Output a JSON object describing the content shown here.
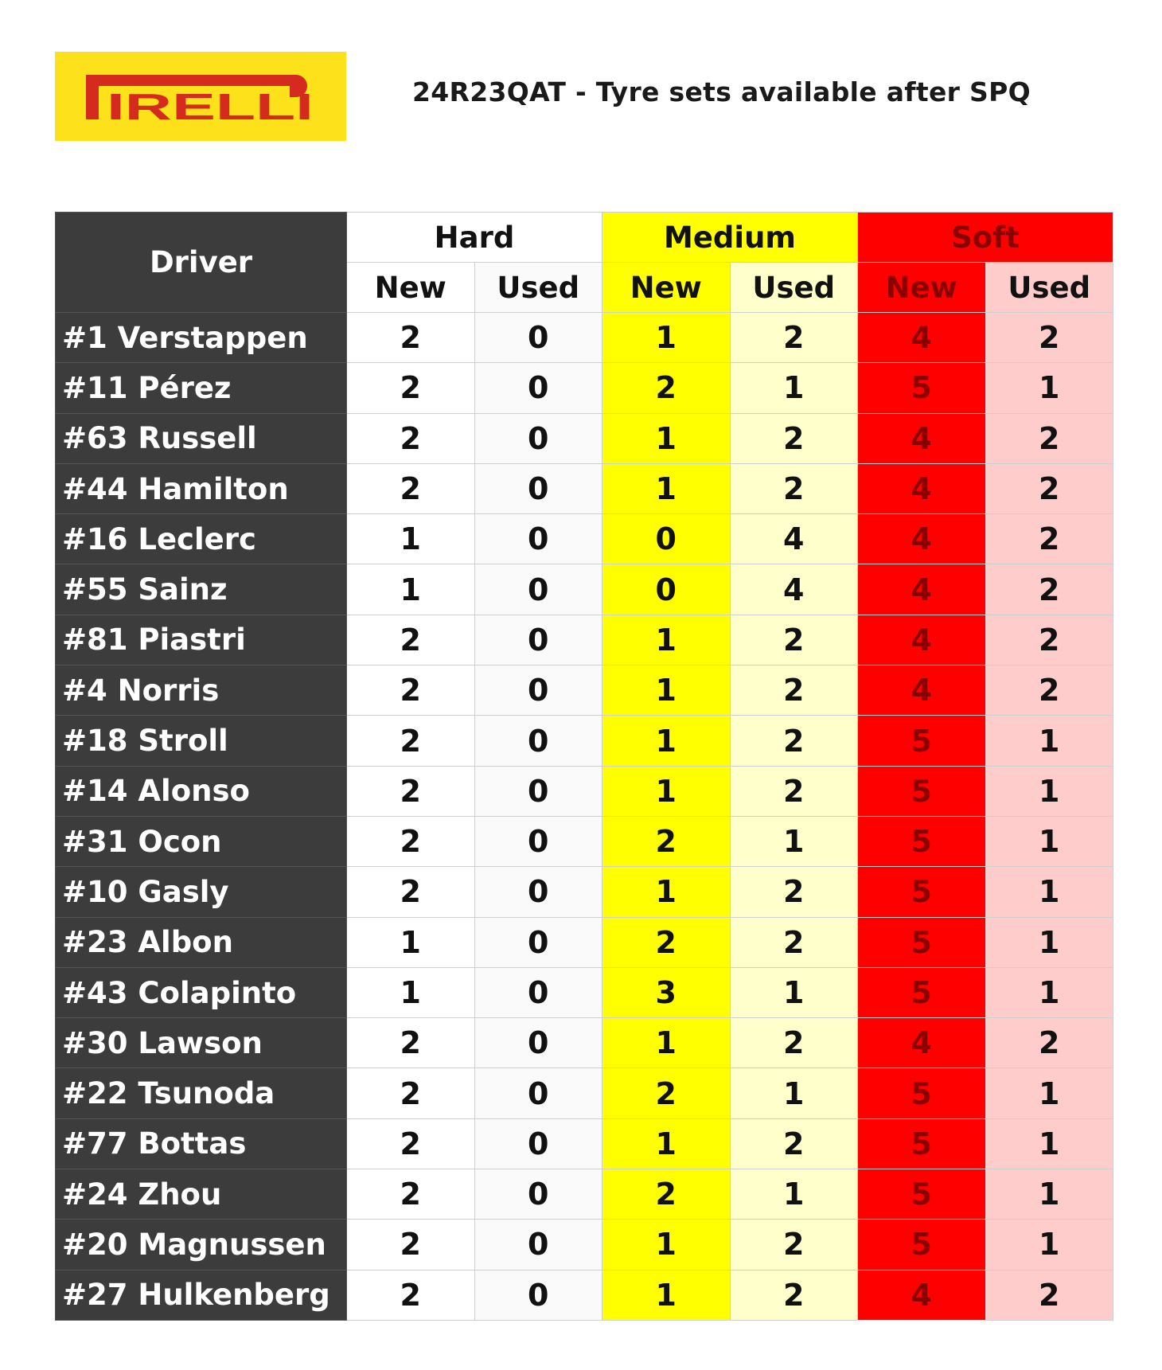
{
  "logo": {
    "text": "PIRELLI",
    "colors": {
      "background": "#fde21b",
      "text": "#d52b1e"
    }
  },
  "title": "24R23QAT - Tyre sets available after SPQ",
  "table": {
    "driver_header": "Driver",
    "compounds": [
      {
        "name": "Hard",
        "color": "#ffffff"
      },
      {
        "name": "Medium",
        "color": "#ffff00"
      },
      {
        "name": "Soft",
        "color": "#ff0000"
      }
    ],
    "subheaders": [
      "New",
      "Used",
      "New",
      "Used",
      "New",
      "Used"
    ],
    "rows": [
      {
        "driver": "#1 Verstappen",
        "v": [
          "2",
          "0",
          "1",
          "2",
          "4",
          "2"
        ]
      },
      {
        "driver": "#11 Pérez",
        "v": [
          "2",
          "0",
          "2",
          "1",
          "5",
          "1"
        ]
      },
      {
        "driver": "#63 Russell",
        "v": [
          "2",
          "0",
          "1",
          "2",
          "4",
          "2"
        ]
      },
      {
        "driver": "#44 Hamilton",
        "v": [
          "2",
          "0",
          "1",
          "2",
          "4",
          "2"
        ]
      },
      {
        "driver": "#16 Leclerc",
        "v": [
          "1",
          "0",
          "0",
          "4",
          "4",
          "2"
        ]
      },
      {
        "driver": "#55 Sainz",
        "v": [
          "1",
          "0",
          "0",
          "4",
          "4",
          "2"
        ]
      },
      {
        "driver": "#81 Piastri",
        "v": [
          "2",
          "0",
          "1",
          "2",
          "4",
          "2"
        ]
      },
      {
        "driver": "#4 Norris",
        "v": [
          "2",
          "0",
          "1",
          "2",
          "4",
          "2"
        ]
      },
      {
        "driver": "#18 Stroll",
        "v": [
          "2",
          "0",
          "1",
          "2",
          "5",
          "1"
        ]
      },
      {
        "driver": "#14 Alonso",
        "v": [
          "2",
          "0",
          "1",
          "2",
          "5",
          "1"
        ]
      },
      {
        "driver": "#31 Ocon",
        "v": [
          "2",
          "0",
          "2",
          "1",
          "5",
          "1"
        ]
      },
      {
        "driver": "#10 Gasly",
        "v": [
          "2",
          "0",
          "1",
          "2",
          "5",
          "1"
        ]
      },
      {
        "driver": "#23 Albon",
        "v": [
          "1",
          "0",
          "2",
          "2",
          "5",
          "1"
        ]
      },
      {
        "driver": "#43 Colapinto",
        "v": [
          "1",
          "0",
          "3",
          "1",
          "5",
          "1"
        ]
      },
      {
        "driver": "#30 Lawson",
        "v": [
          "2",
          "0",
          "1",
          "2",
          "4",
          "2"
        ]
      },
      {
        "driver": "#22 Tsunoda",
        "v": [
          "2",
          "0",
          "2",
          "1",
          "5",
          "1"
        ]
      },
      {
        "driver": "#77 Bottas",
        "v": [
          "2",
          "0",
          "1",
          "2",
          "5",
          "1"
        ]
      },
      {
        "driver": "#24 Zhou",
        "v": [
          "2",
          "0",
          "2",
          "1",
          "5",
          "1"
        ]
      },
      {
        "driver": "#20 Magnussen",
        "v": [
          "2",
          "0",
          "1",
          "2",
          "5",
          "1"
        ]
      },
      {
        "driver": "#27 Hulkenberg",
        "v": [
          "2",
          "0",
          "1",
          "2",
          "4",
          "2"
        ]
      }
    ]
  }
}
